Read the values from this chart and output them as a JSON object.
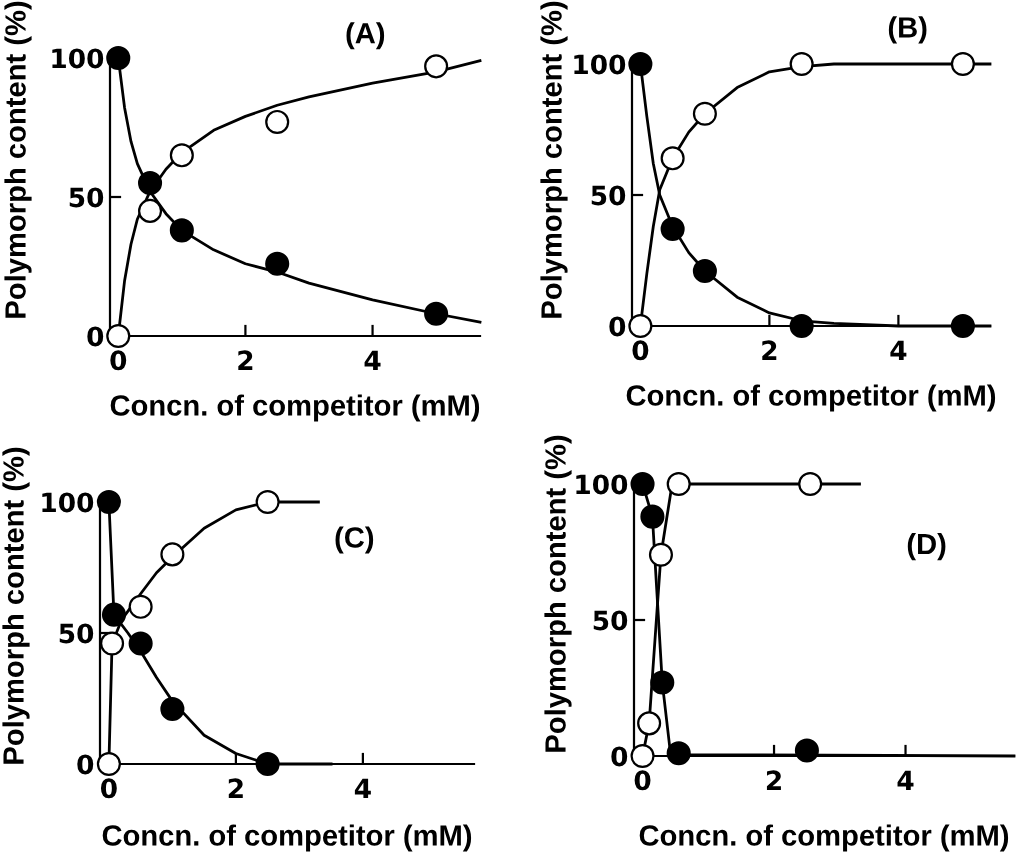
{
  "chart_data": [
    {
      "type": "scatter",
      "marker": "circle",
      "xlabel": "Concn. of competitor (mM)",
      "ylabel": "Polymorph content (%)",
      "annotations": [
        "(A)"
      ],
      "xlim": [
        -0.13,
        5.69
      ],
      "ylim": [
        0,
        100
      ],
      "xticks": [
        0,
        2,
        4
      ],
      "yticks": [
        0,
        50,
        100
      ],
      "series": [
        {
          "type": "line",
          "marker": "none",
          "color": "#000000",
          "x": [
            0,
            0.1,
            0.2,
            0.3,
            0.5,
            0.75,
            1,
            1.5,
            2,
            2.5,
            3,
            4,
            5,
            5.69
          ],
          "values": [
            100,
            82,
            70,
            62,
            52,
            44,
            38,
            31,
            26,
            23,
            19,
            13,
            8,
            5
          ]
        },
        {
          "type": "line",
          "marker": "none",
          "color": "#000000",
          "x": [
            0,
            0.1,
            0.2,
            0.3,
            0.5,
            0.75,
            1,
            1.5,
            2,
            2.5,
            3,
            4,
            5,
            5.69
          ],
          "values": [
            0,
            20,
            33,
            42,
            52,
            60,
            66,
            74,
            79,
            83,
            86,
            91,
            95,
            99
          ]
        },
        {
          "color": "#000000",
          "x": [
            0,
            0.5,
            1,
            2.5,
            5
          ],
          "values": [
            100,
            55,
            38,
            26,
            8
          ]
        },
        {
          "color": "#ffffff",
          "x": [
            0,
            0.5,
            1,
            2.5,
            5
          ],
          "values": [
            0,
            45,
            65,
            77,
            97
          ]
        }
      ]
    },
    {
      "type": "scatter",
      "marker": "circle",
      "xlabel": "Concn. of competitor (mM)",
      "ylabel": "Polymorph content (%)",
      "annotations": [
        "(B)"
      ],
      "xlim": [
        -0.13,
        5.42
      ],
      "ylim": [
        0,
        100
      ],
      "xticks": [
        0,
        2,
        4
      ],
      "yticks": [
        0,
        50,
        100
      ],
      "series": [
        {
          "type": "line",
          "marker": "none",
          "color": "#000000",
          "x": [
            0,
            0.1,
            0.2,
            0.3,
            0.5,
            0.75,
            1,
            1.5,
            2,
            2.5,
            3,
            3.5,
            4,
            5,
            5.42
          ],
          "values": [
            100,
            80,
            62,
            50,
            38,
            28,
            21,
            11,
            5,
            2,
            1,
            0.5,
            0,
            0,
            0
          ]
        },
        {
          "type": "line",
          "marker": "none",
          "color": "#000000",
          "x": [
            0,
            0.1,
            0.2,
            0.3,
            0.5,
            0.75,
            1,
            1.5,
            2,
            2.5,
            3,
            4,
            5,
            5.42
          ],
          "values": [
            0,
            20,
            38,
            52,
            64,
            74,
            81,
            91,
            97,
            99,
            100,
            100,
            100,
            100
          ]
        },
        {
          "color": "#000000",
          "x": [
            0,
            0.5,
            1,
            2.5,
            5
          ],
          "values": [
            100,
            37,
            21,
            0,
            0
          ]
        },
        {
          "color": "#ffffff",
          "x": [
            0,
            0.5,
            1,
            2.5,
            5
          ],
          "values": [
            0,
            64,
            81,
            100,
            100
          ]
        }
      ]
    },
    {
      "type": "scatter",
      "marker": "circle",
      "xlabel": "Concn. of competitor (mM)",
      "ylabel": "Polymorph content (%)",
      "annotations": [
        "(C)"
      ],
      "xlim": [
        -0.14,
        5.75
      ],
      "ylim": [
        0,
        100
      ],
      "xticks": [
        0,
        2,
        4
      ],
      "yticks": [
        0,
        50,
        100
      ],
      "series": [
        {
          "type": "line",
          "marker": "none",
          "color": "#000000",
          "x": [
            0,
            0.08,
            0.3,
            0.5,
            0.75,
            1,
            1.5,
            2,
            2.5,
            3,
            3.5
          ],
          "values": [
            100,
            57,
            50,
            43,
            33,
            24,
            11,
            4,
            0,
            0,
            0
          ]
        },
        {
          "type": "line",
          "marker": "none",
          "color": "#000000",
          "x": [
            0,
            0.05,
            0.2,
            0.5,
            0.75,
            1,
            1.5,
            2,
            2.5,
            3,
            3.3
          ],
          "values": [
            0,
            46,
            55,
            65,
            73,
            79,
            90,
            97,
            100,
            100,
            100
          ]
        },
        {
          "color": "#000000",
          "x": [
            0,
            0.08,
            0.5,
            1,
            2.5
          ],
          "values": [
            100,
            57,
            46,
            21,
            0
          ]
        },
        {
          "color": "#ffffff",
          "x": [
            0,
            0.05,
            0.5,
            1,
            2.5
          ],
          "values": [
            0,
            46,
            60,
            80,
            100
          ]
        }
      ]
    },
    {
      "type": "scatter",
      "marker": "circle",
      "xlabel": "Concn. of competitor (mM)",
      "ylabel": "Polymorph content (%)",
      "annotations": [
        "(D)"
      ],
      "xlim": [
        -0.13,
        5.65
      ],
      "ylim": [
        0,
        100
      ],
      "xticks": [
        0,
        2,
        4
      ],
      "yticks": [
        0,
        50,
        100
      ],
      "series": [
        {
          "type": "line",
          "marker": "none",
          "color": "#000000",
          "x": [
            0,
            0.15,
            0.3,
            0.42,
            0.6,
            5.65
          ],
          "values": [
            100,
            88,
            27,
            2,
            0.5,
            0
          ]
        },
        {
          "type": "line",
          "marker": "none",
          "color": "#000000",
          "x": [
            0,
            0.1,
            0.28,
            0.45,
            3.3
          ],
          "values": [
            0,
            12,
            74,
            100,
            100
          ]
        },
        {
          "color": "#000000",
          "x": [
            0,
            0.15,
            0.3,
            0.55,
            2.5
          ],
          "values": [
            100,
            88,
            27,
            1,
            2
          ]
        },
        {
          "color": "#ffffff",
          "x": [
            0,
            0.1,
            0.28,
            0.55,
            2.55
          ],
          "values": [
            0,
            12,
            74,
            100,
            100
          ]
        }
      ]
    }
  ]
}
